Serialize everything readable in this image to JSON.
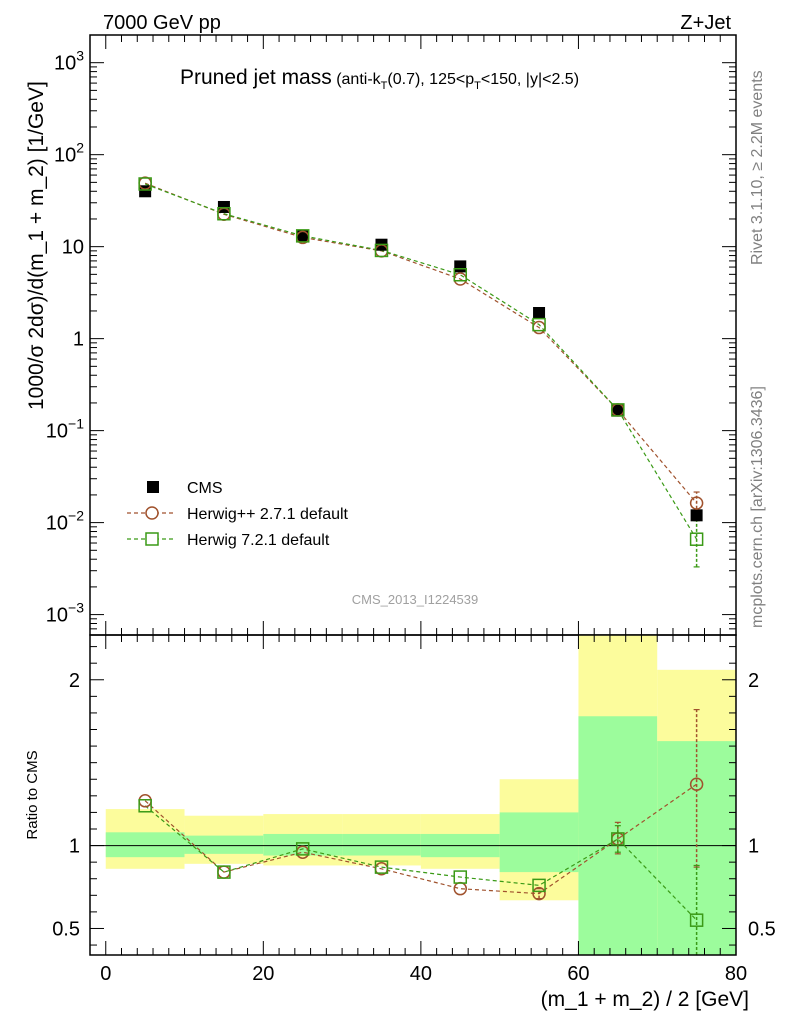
{
  "header": {
    "left_label": "7000 GeV pp",
    "right_label": "Z+Jet"
  },
  "side_labels": {
    "rivet": "Rivet 3.1.10, ≥ 2.2M events",
    "mcplots": "mcplots.cern.ch [arXiv:1306.3436]"
  },
  "colors": {
    "data": "#000000",
    "herwig_pp": "#a0522d",
    "herwig7": "#3a9a16",
    "band_inner": "#9cfc9c",
    "band_outer": "#fcfc9c"
  },
  "chart_data": [
    {
      "type": "scatter",
      "name": "main",
      "title_main": "Pruned jet mass",
      "title_sub_1": "(anti-k",
      "title_sub_T1": "T",
      "title_sub_2": "(0.7), 125<p",
      "title_sub_T2": "T",
      "title_sub_3": "<150, |y|<2.5)",
      "ylabel": "1000/σ 2dσ)/d(m_1 + m_2) [1/GeV]",
      "yscale": "log",
      "ylim": [
        0.0006,
        2000
      ],
      "xlim": [
        -2,
        80
      ],
      "yticks": [
        {
          "base": "10",
          "exp": "3",
          "value": 1000
        },
        {
          "base": "10",
          "exp": "2",
          "value": 100
        },
        {
          "base": "10",
          "exp": "",
          "value": 10
        },
        {
          "base": "1",
          "exp": "",
          "value": 1
        },
        {
          "base": "10",
          "exp": "−1",
          "value": 0.1
        },
        {
          "base": "10",
          "exp": "−2",
          "value": 0.01
        },
        {
          "base": "10",
          "exp": "−3",
          "value": 0.001
        }
      ],
      "watermark": "CMS_2013_I1224539",
      "legend": [
        {
          "label": "CMS",
          "marker": "filled-square"
        },
        {
          "label": "Herwig++ 2.7.1 default",
          "marker": "open-circle"
        },
        {
          "label": "Herwig 7.2.1 default",
          "marker": "open-square"
        }
      ],
      "x": [
        5,
        15,
        25,
        35,
        45,
        55,
        65,
        75
      ],
      "series": [
        {
          "name": "CMS",
          "values": [
            40,
            27,
            13,
            10.5,
            6.1,
            1.9,
            0.165,
            0.012
          ]
        },
        {
          "name": "Herwig++ 2.7.1 default",
          "values": [
            49,
            22.5,
            12.6,
            9.0,
            4.45,
            1.32,
            0.168,
            0.0163
          ],
          "err_last": [
            0.0125,
            0.0215
          ]
        },
        {
          "name": "Herwig 7.2.1 default",
          "values": [
            48,
            22.8,
            13.1,
            9.1,
            4.95,
            1.42,
            0.168,
            0.0066
          ],
          "err_last": [
            0.0033,
            0.0105
          ]
        }
      ]
    },
    {
      "type": "scatter",
      "name": "ratio",
      "ylabel": "Ratio to CMS",
      "xlabel": "(m_1 + m_2) / 2 [GeV]",
      "ylim": [
        0.34,
        2.27
      ],
      "xlim": [
        -2,
        80
      ],
      "xticks": [
        0,
        20,
        40,
        60,
        80
      ],
      "yticks": [
        0.5,
        1,
        2
      ],
      "bins": [
        0,
        10,
        20,
        30,
        40,
        50,
        60,
        70,
        80
      ],
      "band_inner": [
        [
          0.93,
          1.08
        ],
        [
          0.95,
          1.06
        ],
        [
          0.94,
          1.07
        ],
        [
          0.94,
          1.07
        ],
        [
          0.93,
          1.07
        ],
        [
          0.84,
          1.2
        ],
        [
          0.34,
          1.78
        ],
        [
          0.34,
          1.63
        ]
      ],
      "band_outer": [
        [
          0.86,
          1.22
        ],
        [
          0.89,
          1.18
        ],
        [
          0.88,
          1.19
        ],
        [
          0.88,
          1.19
        ],
        [
          0.86,
          1.19
        ],
        [
          0.67,
          1.4
        ],
        [
          0.34,
          2.27
        ],
        [
          0.43,
          2.06
        ]
      ],
      "x": [
        5,
        15,
        25,
        35,
        45,
        55,
        65,
        75
      ],
      "series": [
        {
          "name": "Herwig++ 2.7.1 default",
          "values": [
            1.27,
            0.84,
            0.96,
            0.86,
            0.74,
            0.71,
            1.04,
            1.37
          ],
          "err": [
            null,
            null,
            null,
            null,
            null,
            [
              0.68,
              0.74
            ],
            [
              0.95,
              1.14
            ],
            [
              0.87,
              1.82
            ]
          ]
        },
        {
          "name": "Herwig 7.2.1 default",
          "values": [
            1.24,
            0.84,
            0.98,
            0.87,
            0.81,
            0.76,
            1.04,
            0.55
          ],
          "err": [
            null,
            null,
            null,
            null,
            null,
            null,
            [
              0.96,
              1.12
            ],
            [
              0.3,
              0.88
            ]
          ]
        }
      ]
    }
  ]
}
